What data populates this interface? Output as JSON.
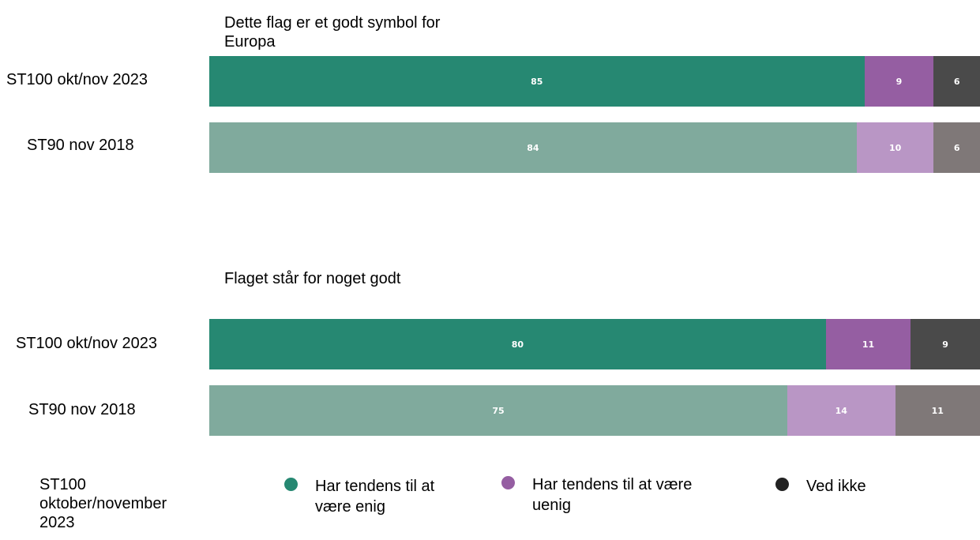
{
  "chart_data": {
    "type": "bar",
    "orientation": "horizontal",
    "stacked": true,
    "legend_title": "ST100\noktober/november\n2023",
    "legend_placement": "bottom",
    "legend": [
      {
        "label": "Har tendens til at\nvære enig",
        "color": "#268872"
      },
      {
        "label": "Har tendens til at være\nuenig",
        "color": "#955ea2"
      },
      {
        "label": "Ved ikke",
        "color": "#222222"
      }
    ],
    "panels": [
      {
        "title": "Dette flag er et godt symbol for\nEuropa",
        "rows": [
          {
            "label": "ST100 okt/nov 2023",
            "values": [
              85,
              9,
              6
            ],
            "colors": [
              "#268872",
              "#955ea2",
              "#4a4a4a"
            ]
          },
          {
            "label": "ST90 nov 2018",
            "values": [
              84,
              10,
              6
            ],
            "colors": [
              "#80aa9d",
              "#b996c5",
              "#7f7878"
            ]
          }
        ]
      },
      {
        "title": "Flaget står for noget godt",
        "rows": [
          {
            "label": "ST100 okt/nov 2023",
            "values": [
              80,
              11,
              9
            ],
            "colors": [
              "#268872",
              "#955ea2",
              "#4a4a4a"
            ]
          },
          {
            "label": "ST90 nov 2018",
            "values": [
              75,
              14,
              11
            ],
            "colors": [
              "#80aa9d",
              "#b996c5",
              "#7f7878"
            ]
          }
        ]
      }
    ]
  }
}
